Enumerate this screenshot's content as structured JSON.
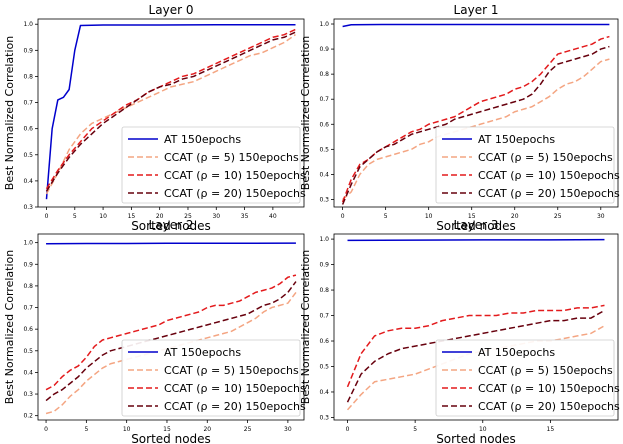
{
  "figure": {
    "ylabel": "Best Normalized Correlation",
    "xlabel": "Sorted nodes"
  },
  "legend": [
    {
      "label": "AT 150epochs",
      "color": "#0000cc",
      "dash": "solid"
    },
    {
      "label": "CCAT (ρ = 5) 150epochs",
      "color": "#f4a582",
      "dash": "dashed"
    },
    {
      "label": "CCAT (ρ = 10) 150epochs",
      "color": "#e31a1c",
      "dash": "dashed"
    },
    {
      "label": "CCAT (ρ = 20) 150epochs",
      "color": "#67000d",
      "dash": "dashed"
    }
  ],
  "chart_data": [
    {
      "type": "line",
      "title": "Layer 0",
      "xlabel": "Sorted nodes",
      "ylabel": "Best Normalized Correlation",
      "xlim": [
        -1.5,
        45.5
      ],
      "ylim": [
        0.3,
        1.02
      ],
      "xticks": [
        0,
        5,
        10,
        15,
        20,
        25,
        30,
        35,
        40
      ],
      "yticks": [
        0.3,
        0.4,
        0.5,
        0.6,
        0.7,
        0.8,
        0.9,
        1.0
      ],
      "ytick_labels": [
        "0.3",
        "0.4",
        "0.5",
        "0.6",
        "0.7",
        "0.8",
        "0.9",
        "1.0"
      ],
      "legend_position": "lower-right",
      "series": [
        {
          "name": "AT 150epochs",
          "x": [
            0,
            1,
            2,
            3,
            4,
            5,
            6,
            10,
            20,
            30,
            44
          ],
          "y": [
            0.33,
            0.6,
            0.71,
            0.72,
            0.75,
            0.9,
            0.995,
            0.997,
            0.997,
            0.998,
            0.998
          ]
        },
        {
          "name": "CCAT (ρ = 5) 150epochs",
          "x": [
            0,
            2,
            4,
            6,
            8,
            10,
            12,
            14,
            16,
            18,
            20,
            22,
            24,
            26,
            28,
            30,
            32,
            34,
            36,
            38,
            40,
            42,
            44
          ],
          "y": [
            0.35,
            0.43,
            0.52,
            0.58,
            0.62,
            0.64,
            0.66,
            0.68,
            0.7,
            0.72,
            0.74,
            0.76,
            0.77,
            0.78,
            0.8,
            0.82,
            0.84,
            0.86,
            0.88,
            0.89,
            0.91,
            0.93,
            0.96
          ]
        },
        {
          "name": "CCAT (ρ = 10) 150epochs",
          "x": [
            0,
            2,
            4,
            6,
            8,
            10,
            12,
            14,
            16,
            18,
            20,
            22,
            24,
            26,
            28,
            30,
            32,
            34,
            36,
            38,
            40,
            42,
            44
          ],
          "y": [
            0.37,
            0.44,
            0.5,
            0.55,
            0.6,
            0.63,
            0.66,
            0.69,
            0.71,
            0.74,
            0.76,
            0.78,
            0.8,
            0.81,
            0.83,
            0.85,
            0.87,
            0.89,
            0.91,
            0.93,
            0.95,
            0.96,
            0.98
          ]
        },
        {
          "name": "CCAT (ρ = 20) 150epochs",
          "x": [
            0,
            2,
            4,
            6,
            8,
            10,
            12,
            14,
            16,
            18,
            20,
            22,
            24,
            26,
            28,
            30,
            32,
            34,
            36,
            38,
            40,
            42,
            44
          ],
          "y": [
            0.36,
            0.43,
            0.49,
            0.54,
            0.58,
            0.62,
            0.65,
            0.68,
            0.71,
            0.74,
            0.76,
            0.77,
            0.79,
            0.8,
            0.82,
            0.84,
            0.86,
            0.88,
            0.9,
            0.92,
            0.94,
            0.95,
            0.97
          ]
        }
      ]
    },
    {
      "type": "line",
      "title": "Layer 1",
      "xlabel": "Sorted nodes",
      "ylabel": "Best Normalized Correlation",
      "xlim": [
        -1,
        32
      ],
      "ylim": [
        0.27,
        1.02
      ],
      "xticks": [
        0,
        5,
        10,
        15,
        20,
        25,
        30
      ],
      "yticks": [
        0.3,
        0.4,
        0.5,
        0.6,
        0.7,
        0.8,
        0.9,
        1.0
      ],
      "ytick_labels": [
        "0.3",
        "0.4",
        "0.5",
        "0.6",
        "0.7",
        "0.8",
        "0.9",
        "1.0"
      ],
      "legend_position": "lower-right",
      "series": [
        {
          "name": "AT 150epochs",
          "x": [
            0,
            1,
            5,
            10,
            15,
            20,
            25,
            31
          ],
          "y": [
            0.99,
            0.997,
            0.998,
            0.998,
            0.998,
            0.998,
            0.998,
            0.998
          ]
        },
        {
          "name": "CCAT (ρ = 5) 150epochs",
          "x": [
            0,
            1,
            2,
            3,
            4,
            5,
            6,
            7,
            8,
            9,
            10,
            11,
            12,
            13,
            14,
            15,
            16,
            17,
            18,
            19,
            20,
            21,
            22,
            23,
            24,
            25,
            26,
            27,
            28,
            29,
            30,
            31
          ],
          "y": [
            0.3,
            0.33,
            0.4,
            0.44,
            0.46,
            0.47,
            0.48,
            0.49,
            0.5,
            0.52,
            0.53,
            0.55,
            0.56,
            0.57,
            0.58,
            0.59,
            0.6,
            0.61,
            0.62,
            0.63,
            0.65,
            0.66,
            0.67,
            0.69,
            0.71,
            0.74,
            0.76,
            0.77,
            0.79,
            0.82,
            0.85,
            0.86
          ]
        },
        {
          "name": "CCAT (ρ = 10) 150epochs",
          "x": [
            0,
            1,
            2,
            3,
            4,
            5,
            6,
            7,
            8,
            9,
            10,
            11,
            12,
            13,
            14,
            15,
            16,
            17,
            18,
            19,
            20,
            21,
            22,
            23,
            24,
            25,
            26,
            27,
            28,
            29,
            30,
            31
          ],
          "y": [
            0.29,
            0.38,
            0.44,
            0.46,
            0.49,
            0.51,
            0.53,
            0.55,
            0.57,
            0.58,
            0.6,
            0.61,
            0.62,
            0.63,
            0.65,
            0.67,
            0.69,
            0.7,
            0.71,
            0.72,
            0.74,
            0.75,
            0.77,
            0.8,
            0.84,
            0.88,
            0.89,
            0.9,
            0.91,
            0.92,
            0.94,
            0.95
          ]
        },
        {
          "name": "CCAT (ρ = 20) 150epochs",
          "x": [
            0,
            1,
            2,
            3,
            4,
            5,
            6,
            7,
            8,
            9,
            10,
            11,
            12,
            13,
            14,
            15,
            16,
            17,
            18,
            19,
            20,
            21,
            22,
            23,
            24,
            25,
            26,
            27,
            28,
            29,
            30,
            31
          ],
          "y": [
            0.28,
            0.36,
            0.43,
            0.46,
            0.49,
            0.51,
            0.52,
            0.54,
            0.56,
            0.57,
            0.58,
            0.59,
            0.6,
            0.62,
            0.63,
            0.64,
            0.65,
            0.66,
            0.67,
            0.68,
            0.69,
            0.7,
            0.72,
            0.76,
            0.81,
            0.84,
            0.85,
            0.86,
            0.87,
            0.88,
            0.9,
            0.91
          ]
        }
      ]
    },
    {
      "type": "line",
      "title": "Layer 2",
      "xlabel": "Sorted nodes",
      "ylabel": "Best Normalized Correlation",
      "xlim": [
        -1,
        32
      ],
      "ylim": [
        0.18,
        1.04
      ],
      "xticks": [
        0,
        5,
        10,
        15,
        20,
        25,
        30
      ],
      "yticks": [
        0.2,
        0.3,
        0.4,
        0.5,
        0.6,
        0.7,
        0.8,
        0.9,
        1.0
      ],
      "ytick_labels": [
        "0.2",
        "0.3",
        "0.4",
        "0.5",
        "0.6",
        "0.7",
        "0.8",
        "0.9",
        "1.0"
      ],
      "legend_position": "lower-right",
      "series": [
        {
          "name": "AT 150epochs",
          "x": [
            0,
            5,
            10,
            15,
            20,
            25,
            31
          ],
          "y": [
            0.995,
            0.996,
            0.996,
            0.997,
            0.997,
            0.997,
            0.998
          ]
        },
        {
          "name": "CCAT (ρ = 5) 150epochs",
          "x": [
            0,
            1,
            2,
            3,
            4,
            5,
            6,
            7,
            8,
            9,
            10,
            11,
            12,
            13,
            14,
            15,
            16,
            17,
            18,
            19,
            20,
            21,
            22,
            23,
            24,
            25,
            26,
            27,
            28,
            29,
            30,
            31
          ],
          "y": [
            0.21,
            0.22,
            0.25,
            0.29,
            0.32,
            0.36,
            0.39,
            0.42,
            0.44,
            0.45,
            0.46,
            0.47,
            0.48,
            0.49,
            0.5,
            0.51,
            0.52,
            0.53,
            0.54,
            0.55,
            0.56,
            0.57,
            0.58,
            0.59,
            0.61,
            0.63,
            0.65,
            0.68,
            0.7,
            0.71,
            0.72,
            0.77
          ]
        },
        {
          "name": "CCAT (ρ = 10) 150epochs",
          "x": [
            0,
            1,
            2,
            3,
            4,
            5,
            6,
            7,
            8,
            9,
            10,
            11,
            12,
            13,
            14,
            15,
            16,
            17,
            18,
            19,
            20,
            21,
            22,
            23,
            24,
            25,
            26,
            27,
            28,
            29,
            30,
            31
          ],
          "y": [
            0.32,
            0.34,
            0.38,
            0.41,
            0.43,
            0.47,
            0.52,
            0.55,
            0.56,
            0.57,
            0.58,
            0.59,
            0.6,
            0.61,
            0.62,
            0.64,
            0.65,
            0.66,
            0.67,
            0.68,
            0.7,
            0.71,
            0.71,
            0.72,
            0.73,
            0.75,
            0.77,
            0.78,
            0.79,
            0.81,
            0.84,
            0.85
          ]
        },
        {
          "name": "CCAT (ρ = 20) 150epochs",
          "x": [
            0,
            1,
            2,
            3,
            4,
            5,
            6,
            7,
            8,
            9,
            10,
            11,
            12,
            13,
            14,
            15,
            16,
            17,
            18,
            19,
            20,
            21,
            22,
            23,
            24,
            25,
            26,
            27,
            28,
            29,
            30,
            31
          ],
          "y": [
            0.27,
            0.3,
            0.32,
            0.35,
            0.38,
            0.42,
            0.45,
            0.48,
            0.5,
            0.51,
            0.52,
            0.53,
            0.54,
            0.55,
            0.56,
            0.57,
            0.58,
            0.59,
            0.6,
            0.61,
            0.62,
            0.63,
            0.64,
            0.65,
            0.66,
            0.67,
            0.69,
            0.71,
            0.72,
            0.74,
            0.77,
            0.82
          ]
        }
      ]
    },
    {
      "type": "line",
      "title": "Layer 3",
      "xlabel": "Sorted nodes",
      "ylabel": "Best Normalized Correlation",
      "xlim": [
        -1,
        20
      ],
      "ylim": [
        0.29,
        1.02
      ],
      "xticks": [
        0,
        5,
        10,
        15
      ],
      "yticks": [
        0.3,
        0.4,
        0.5,
        0.6,
        0.7,
        0.8,
        0.9,
        1.0
      ],
      "ytick_labels": [
        "0.3",
        "0.4",
        "0.5",
        "0.6",
        "0.7",
        "0.8",
        "0.9",
        "1.0"
      ],
      "legend_position": "lower-right",
      "series": [
        {
          "name": "AT 150epochs",
          "x": [
            0,
            5,
            10,
            15,
            19
          ],
          "y": [
            0.995,
            0.996,
            0.997,
            0.997,
            0.998
          ]
        },
        {
          "name": "CCAT (ρ = 5) 150epochs",
          "x": [
            0,
            1,
            2,
            3,
            4,
            5,
            6,
            7,
            8,
            9,
            10,
            11,
            12,
            13,
            14,
            15,
            16,
            17,
            18,
            19
          ],
          "y": [
            0.33,
            0.39,
            0.44,
            0.45,
            0.46,
            0.47,
            0.49,
            0.51,
            0.53,
            0.55,
            0.56,
            0.57,
            0.58,
            0.59,
            0.6,
            0.6,
            0.61,
            0.62,
            0.63,
            0.66
          ]
        },
        {
          "name": "CCAT (ρ = 10) 150epochs",
          "x": [
            0,
            1,
            2,
            3,
            4,
            5,
            6,
            7,
            8,
            9,
            10,
            11,
            12,
            13,
            14,
            15,
            16,
            17,
            18,
            19
          ],
          "y": [
            0.42,
            0.55,
            0.62,
            0.64,
            0.65,
            0.65,
            0.66,
            0.68,
            0.69,
            0.7,
            0.7,
            0.7,
            0.71,
            0.71,
            0.72,
            0.72,
            0.72,
            0.73,
            0.73,
            0.74
          ]
        },
        {
          "name": "CCAT (ρ = 20) 150epochs",
          "x": [
            0,
            1,
            2,
            3,
            4,
            5,
            6,
            7,
            8,
            9,
            10,
            11,
            12,
            13,
            14,
            15,
            16,
            17,
            18,
            19
          ],
          "y": [
            0.36,
            0.47,
            0.52,
            0.55,
            0.57,
            0.58,
            0.59,
            0.6,
            0.61,
            0.62,
            0.63,
            0.64,
            0.65,
            0.66,
            0.67,
            0.68,
            0.68,
            0.69,
            0.69,
            0.72
          ]
        }
      ]
    }
  ]
}
